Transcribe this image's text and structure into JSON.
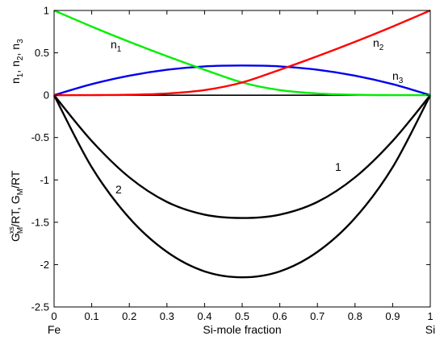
{
  "chart_data": {
    "type": "line",
    "xlabel": "Si-mole fraction",
    "ylabel_upper": "n1, n2, n3",
    "ylabel_lower": "GxsM/RT, GM/RT",
    "xlim": [
      0,
      1
    ],
    "ylim": [
      -2.5,
      1
    ],
    "grid": false,
    "x_ticks": [
      "0",
      "0.1",
      "0.2",
      "0.3",
      "0.4",
      "0.5",
      "0.6",
      "0.7",
      "0.8",
      "0.9",
      "1"
    ],
    "y_ticks": [
      "1",
      "0.5",
      "0",
      "-0.5",
      "-1",
      "-1.5",
      "-2",
      "-2.5"
    ],
    "x_end_labels": {
      "left": "Fe",
      "right": "Si"
    },
    "curve_labels": {
      "n1": {
        "main": "n",
        "sub": "1"
      },
      "n2": {
        "main": "n",
        "sub": "2"
      },
      "n3": {
        "main": "n",
        "sub": "3"
      },
      "g1": "1",
      "g2": "2"
    },
    "series": [
      {
        "key": "n1",
        "color": "#00ee00",
        "x": [
          0,
          0.1,
          0.2,
          0.3,
          0.4,
          0.5,
          0.6,
          0.7,
          0.8,
          0.9,
          1
        ],
        "y": [
          1.0,
          0.81,
          0.63,
          0.46,
          0.3,
          0.15,
          0.06,
          0.02,
          0.005,
          0.001,
          0
        ]
      },
      {
        "key": "n2",
        "color": "#ff0000",
        "x": [
          0,
          0.1,
          0.2,
          0.3,
          0.4,
          0.5,
          0.6,
          0.7,
          0.8,
          0.9,
          1
        ],
        "y": [
          0,
          0.001,
          0.005,
          0.02,
          0.06,
          0.15,
          0.3,
          0.46,
          0.63,
          0.81,
          1.0
        ]
      },
      {
        "key": "n3",
        "color": "#0000ee",
        "x": [
          0,
          0.1,
          0.2,
          0.3,
          0.4,
          0.5,
          0.6,
          0.7,
          0.8,
          0.9,
          1
        ],
        "y": [
          0,
          0.13,
          0.23,
          0.3,
          0.34,
          0.35,
          0.34,
          0.3,
          0.23,
          0.13,
          0
        ]
      },
      {
        "key": "g1",
        "color": "#000000",
        "x": [
          0,
          0.1,
          0.2,
          0.3,
          0.4,
          0.5,
          0.6,
          0.7,
          0.8,
          0.9,
          1
        ],
        "y": [
          0,
          -0.54,
          -0.97,
          -1.26,
          -1.41,
          -1.45,
          -1.41,
          -1.26,
          -0.97,
          -0.54,
          0
        ]
      },
      {
        "key": "g2",
        "color": "#000000",
        "x": [
          0,
          0.1,
          0.2,
          0.3,
          0.4,
          0.5,
          0.6,
          0.7,
          0.8,
          0.9,
          1
        ],
        "y": [
          0,
          -0.85,
          -1.45,
          -1.85,
          -2.08,
          -2.15,
          -2.08,
          -1.85,
          -1.45,
          -0.85,
          0
        ]
      },
      {
        "key": "zero",
        "color": "#000000",
        "x": [
          0,
          1
        ],
        "y": [
          0,
          0
        ]
      }
    ]
  }
}
